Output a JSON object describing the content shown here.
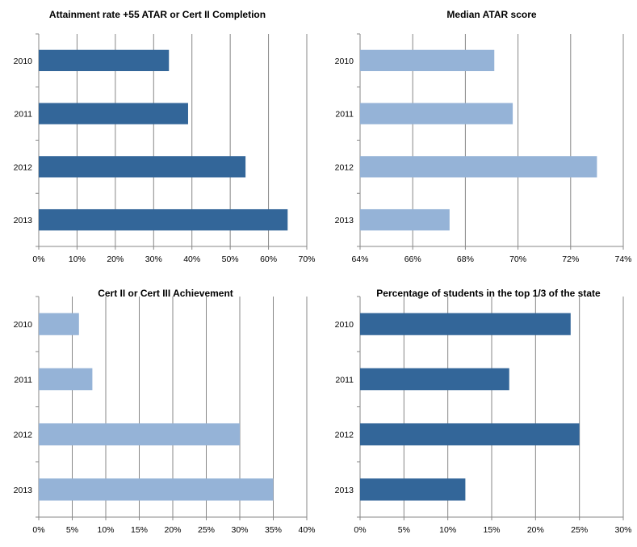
{
  "chart_data": [
    {
      "type": "bar",
      "orientation": "horizontal",
      "title": "Attainment rate +55 ATAR or Cert II Completion",
      "categories": [
        "2010",
        "2011",
        "2012",
        "2013"
      ],
      "values": [
        34,
        39,
        54,
        65
      ],
      "xlim": [
        0,
        70
      ],
      "x_ticks": [
        "0%",
        "10%",
        "20%",
        "30%",
        "40%",
        "50%",
        "60%",
        "70%"
      ],
      "unit": "%",
      "grid": true,
      "color": "#336699"
    },
    {
      "type": "bar",
      "orientation": "horizontal",
      "title": "Median ATAR score",
      "categories": [
        "2010",
        "2011",
        "2012",
        "2013"
      ],
      "values": [
        69.1,
        69.8,
        73.0,
        67.4
      ],
      "xlim": [
        64,
        74
      ],
      "x_ticks": [
        "64%",
        "66%",
        "68%",
        "70%",
        "72%",
        "74%"
      ],
      "unit": "%",
      "grid": true,
      "color": "#95b3d7"
    },
    {
      "type": "bar",
      "orientation": "horizontal",
      "title": "Cert II or Cert III Achievement",
      "categories": [
        "2010",
        "2011",
        "2012",
        "2013"
      ],
      "values": [
        6,
        8,
        30,
        35
      ],
      "xlim": [
        0,
        40
      ],
      "x_ticks": [
        "0%",
        "5%",
        "10%",
        "15%",
        "20%",
        "25%",
        "30%",
        "35%",
        "40%"
      ],
      "unit": "%",
      "grid": true,
      "color": "#95b3d7"
    },
    {
      "type": "bar",
      "orientation": "horizontal",
      "title": "Percentage of students in the top 1/3 of the state",
      "categories": [
        "2010",
        "2011",
        "2012",
        "2013"
      ],
      "values": [
        24,
        17,
        25,
        12
      ],
      "xlim": [
        0,
        30
      ],
      "x_ticks": [
        "0%",
        "5%",
        "10%",
        "15%",
        "20%",
        "25%",
        "30%"
      ],
      "unit": "%",
      "grid": true,
      "color": "#336699"
    }
  ]
}
